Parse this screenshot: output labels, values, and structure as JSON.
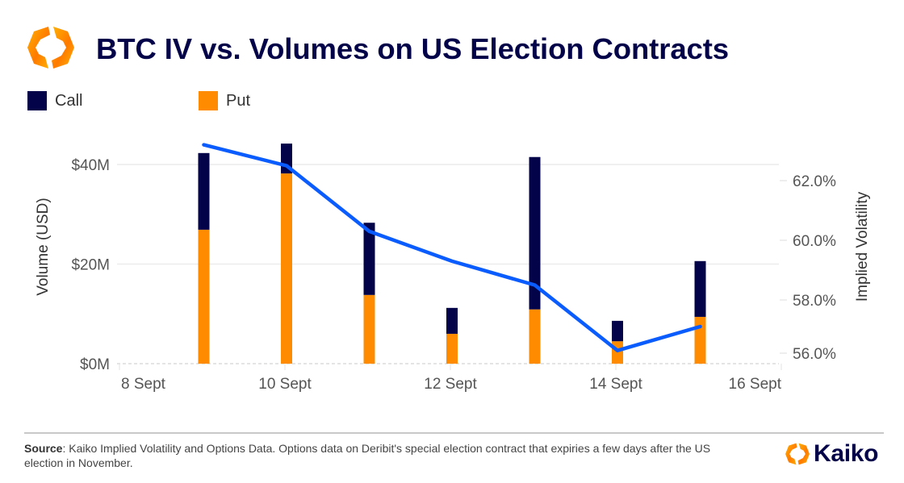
{
  "header": {
    "title": "BTC IV vs. Volumes on US Election Contracts",
    "logo_icon": "kaiko-hexagon-logo"
  },
  "legend": [
    {
      "label": "Call",
      "color": "#03034a"
    },
    {
      "label": "Put",
      "color": "#ff8c00"
    }
  ],
  "chart_data": {
    "type": "bar",
    "stacked": true,
    "title": "BTC IV vs. Volumes on US Election Contracts",
    "xlabel": "",
    "ylabel": "Volume (USD)",
    "y2label": "Implied Volatility",
    "x_ticks": [
      "8 Sept",
      "10 Sept",
      "12 Sept",
      "14 Sept",
      "16 Sept"
    ],
    "x_tick_days": [
      8,
      10,
      12,
      14,
      16
    ],
    "x_range_days": [
      8,
      16
    ],
    "y_ticks": [
      "$0M",
      "$20M",
      "$40M"
    ],
    "y_tick_values": [
      0,
      20,
      40
    ],
    "y_unit": "USD millions",
    "y2_ticks": [
      "56.0%",
      "58.0%",
      "60.0%",
      "62.0%"
    ],
    "y2_tick_values": [
      56,
      58,
      60,
      62
    ],
    "grid": true,
    "legend_position": "top-left",
    "categories": [
      "9 Sept",
      "10 Sept",
      "11 Sept",
      "12 Sept",
      "13 Sept",
      "14 Sept",
      "15 Sept"
    ],
    "category_days": [
      9,
      10,
      11,
      12,
      13,
      14,
      15
    ],
    "series": [
      {
        "name": "Put",
        "type": "bar",
        "axis": "left",
        "color": "#ff8c00",
        "values": [
          26.9,
          38.2,
          13.8,
          6.0,
          10.9,
          4.5,
          9.4
        ]
      },
      {
        "name": "Call",
        "type": "bar",
        "axis": "left",
        "color": "#03034a",
        "values": [
          15.4,
          6.0,
          14.5,
          5.2,
          30.6,
          4.1,
          11.2
        ]
      },
      {
        "name": "Implied Volatility",
        "type": "line",
        "axis": "right",
        "color": "#0a5cff",
        "values": [
          63.2,
          62.5,
          60.3,
          59.3,
          58.5,
          56.1,
          57.0
        ]
      }
    ]
  },
  "footer": {
    "source_label": "Source",
    "source_text": ": Kaiko Implied Volatility and Options Data. Options data on Deribit's special election contract that expiries a few days after the US election in November.",
    "brand_name": "Kaiko"
  }
}
